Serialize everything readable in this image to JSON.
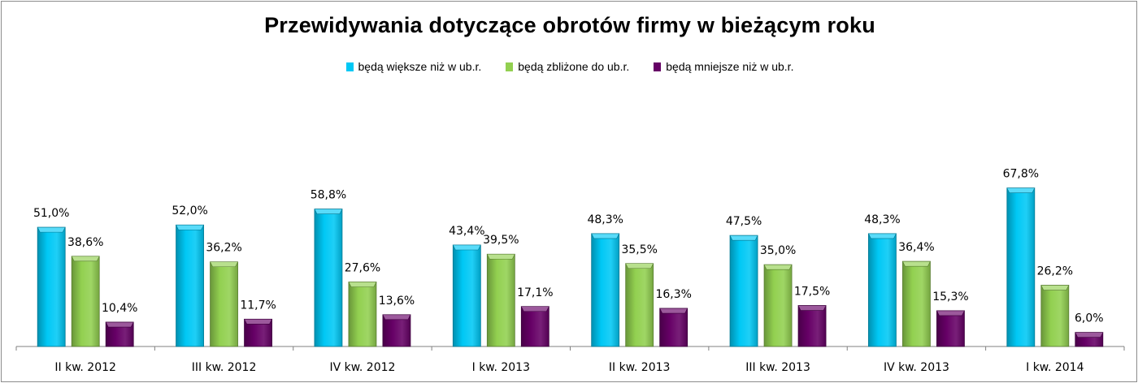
{
  "chart_data": {
    "type": "bar",
    "title": "Przewidywania dotyczące obrotów firmy w bieżącym roku",
    "categories": [
      "II kw. 2012",
      "III kw. 2012",
      "IV kw. 2012",
      "I kw. 2013",
      "II kw. 2013",
      "III kw. 2013",
      "IV kw. 2013",
      "I kw. 2014"
    ],
    "series": [
      {
        "name": "będą większe niż w ub.r.",
        "color": "#00c8f5",
        "values": [
          51.0,
          52.0,
          58.8,
          43.4,
          48.3,
          47.5,
          48.3,
          67.8
        ],
        "labels": [
          "51,0%",
          "52,0%",
          "58,8%",
          "43,4%",
          "48,3%",
          "47,5%",
          "48,3%",
          "67,8%"
        ]
      },
      {
        "name": "będą zbliżone do ub.r.",
        "color": "#92d050",
        "values": [
          38.6,
          36.2,
          27.6,
          39.5,
          35.5,
          35.0,
          36.4,
          26.2
        ],
        "labels": [
          "38,6%",
          "36,2%",
          "27,6%",
          "39,5%",
          "35,5%",
          "35,0%",
          "36,4%",
          "26,2%"
        ]
      },
      {
        "name": "będą mniejsze niż w ub.r.",
        "color": "#660066",
        "values": [
          10.4,
          11.7,
          13.6,
          17.1,
          16.3,
          17.5,
          15.3,
          6.0
        ],
        "labels": [
          "10,4%",
          "11,7%",
          "13,6%",
          "17,1%",
          "16,3%",
          "17,5%",
          "15,3%",
          "6,0%"
        ]
      }
    ],
    "xlabel": "",
    "ylabel": "",
    "ylim": [
      0,
      80
    ],
    "grid": false,
    "legend_position": "top"
  }
}
